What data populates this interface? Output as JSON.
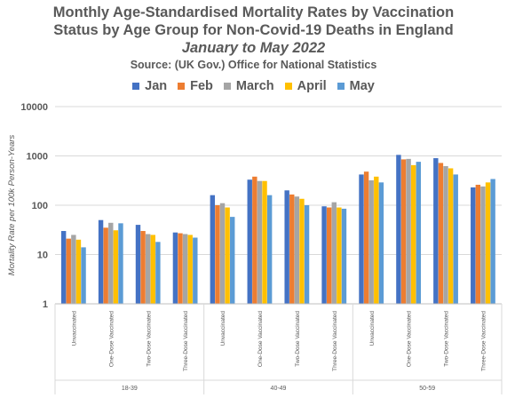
{
  "header": {
    "title_line1": "Monthly Age-Standardised Mortality Rates by Vaccination",
    "title_line2": "Status by Age Group for Non-Covid-19 Deaths in England",
    "subtitle": "January to May 2022",
    "source": "Source: (UK Gov.) Office for National Statistics"
  },
  "colors": {
    "Jan": "#4472C4",
    "Feb": "#ED7D31",
    "March": "#A5A5A5",
    "April": "#FFC000",
    "May": "#5B9BD5"
  },
  "chart_data": {
    "type": "bar",
    "title": "Monthly Age-Standardised Mortality Rates by Vaccination Status by Age Group for Non-Covid-19 Deaths in England",
    "ylabel": "Mortality Rate per 100k Person-Years",
    "yscale": "log",
    "ylim": [
      1,
      10000
    ],
    "yticks": [
      "1",
      "10",
      "100",
      "1000",
      "10000"
    ],
    "grid": true,
    "legend_position": "top",
    "groups": [
      {
        "label": "18-39",
        "categories": [
          "Unvaccinated",
          "One-Dose Vaccinated",
          "Two-Dose Vaccinated",
          "Three-Dose Vaccinated"
        ]
      },
      {
        "label": "40-49",
        "categories": [
          "Unvaccinated",
          "One-Dose Vaccinated",
          "Two-Dose Vaccinated",
          "Three-Dose Vaccinated"
        ]
      },
      {
        "label": "50-59",
        "categories": [
          "Unvaccinated",
          "One-Dose Vaccinated",
          "Two-Dose Vaccinated",
          "Three-Dose Vaccinated"
        ]
      }
    ],
    "series": [
      {
        "name": "Jan",
        "values": [
          30,
          50,
          40,
          28,
          160,
          330,
          200,
          95,
          420,
          1050,
          900,
          230
        ]
      },
      {
        "name": "Feb",
        "values": [
          21,
          35,
          30,
          27,
          100,
          380,
          165,
          90,
          480,
          850,
          720,
          260
        ]
      },
      {
        "name": "March",
        "values": [
          25,
          44,
          26,
          26,
          110,
          310,
          150,
          115,
          320,
          870,
          620,
          240
        ]
      },
      {
        "name": "April",
        "values": [
          20,
          31,
          25,
          25,
          90,
          310,
          135,
          90,
          380,
          650,
          560,
          290
        ]
      },
      {
        "name": "May",
        "values": [
          14,
          43,
          18,
          22,
          58,
          160,
          100,
          85,
          290,
          760,
          420,
          340
        ]
      }
    ]
  }
}
